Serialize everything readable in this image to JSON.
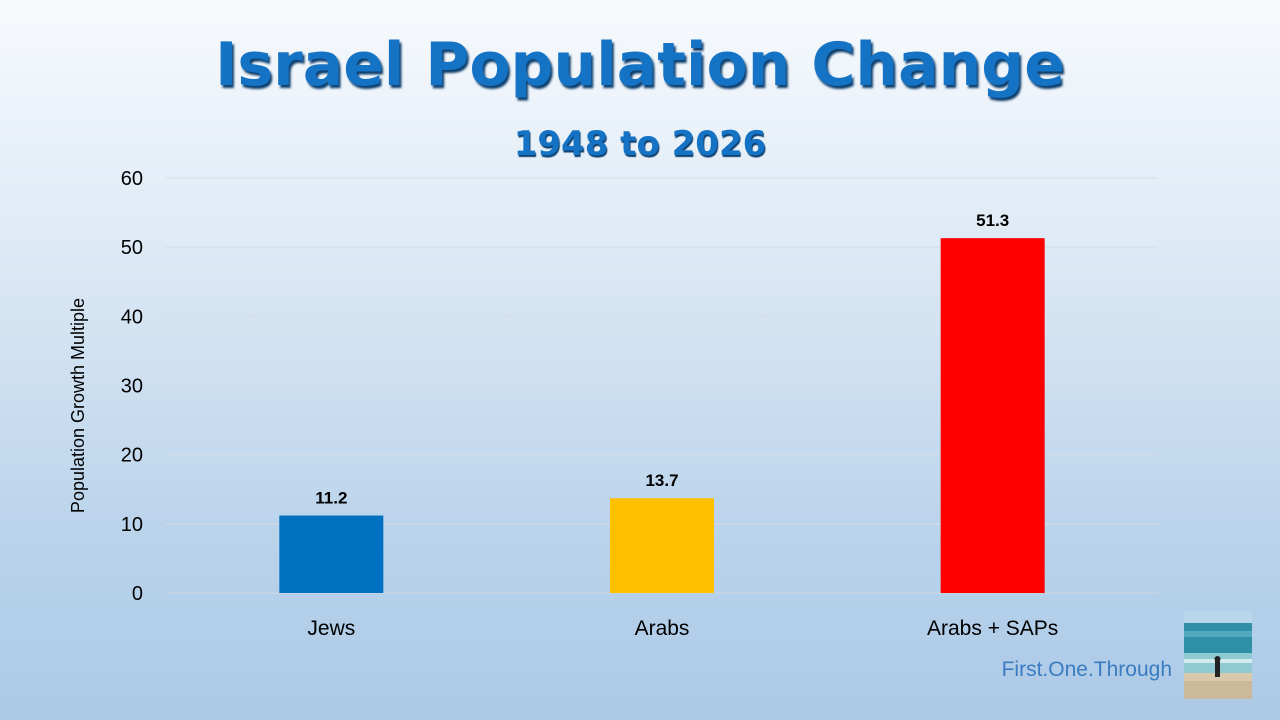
{
  "title": "Israel Population Change",
  "subtitle": "1948 to 2026",
  "credit": "First.One.Through",
  "colors": {
    "title": "#1573c5",
    "grid": "#d6dde6"
  },
  "chart_data": {
    "type": "bar",
    "title": "Israel Population Change",
    "subtitle": "1948 to 2026",
    "categories": [
      "Jews",
      "Arabs",
      "Arabs + SAPs"
    ],
    "values": [
      11.2,
      13.7,
      51.3
    ],
    "value_labels": [
      "11.2",
      "13.7",
      "51.3"
    ],
    "colors": [
      "#0070c0",
      "#ffc000",
      "#ff0000"
    ],
    "xlabel": "",
    "ylabel": "Population Growth Multiple",
    "ylim": [
      0,
      60
    ],
    "yticks": [
      "0",
      "10",
      "20",
      "30",
      "40",
      "50",
      "60"
    ],
    "grid": true,
    "legend": false
  }
}
